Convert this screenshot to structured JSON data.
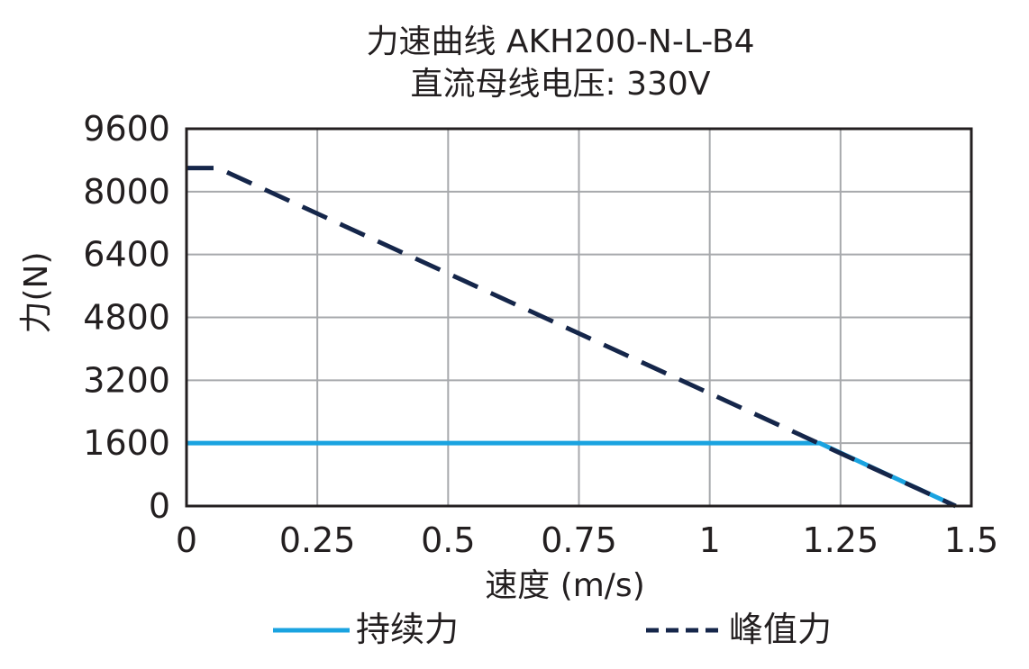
{
  "chart_data": {
    "type": "line",
    "title": "力速曲线 AKH200-N-L-B4",
    "subtitle": "直流母线电压: 330V",
    "xlabel": "速度 (m/s)",
    "ylabel": "力(N)",
    "xlim": [
      0,
      1.5
    ],
    "ylim": [
      0,
      9600
    ],
    "xticks": [
      0,
      0.25,
      0.5,
      0.75,
      1,
      1.25,
      1.5
    ],
    "xtick_labels": [
      "0",
      "0.25",
      "0.5",
      "0.75",
      "1",
      "1.25",
      "1.5"
    ],
    "yticks": [
      0,
      1600,
      3200,
      4800,
      6400,
      8000,
      9600
    ],
    "ytick_labels": [
      "0",
      "1600",
      "3200",
      "4800",
      "6400",
      "8000",
      "9600"
    ],
    "grid": true,
    "legend_position": "bottom",
    "series": [
      {
        "name": "持续力",
        "color": "#1aa3e0",
        "style": "solid",
        "x": [
          0,
          1.21,
          1.47
        ],
        "y": [
          1600,
          1600,
          0
        ]
      },
      {
        "name": "峰值力",
        "color": "#15264a",
        "style": "dashed",
        "x": [
          0,
          0.06,
          1.47
        ],
        "y": [
          8600,
          8600,
          0
        ]
      }
    ]
  }
}
